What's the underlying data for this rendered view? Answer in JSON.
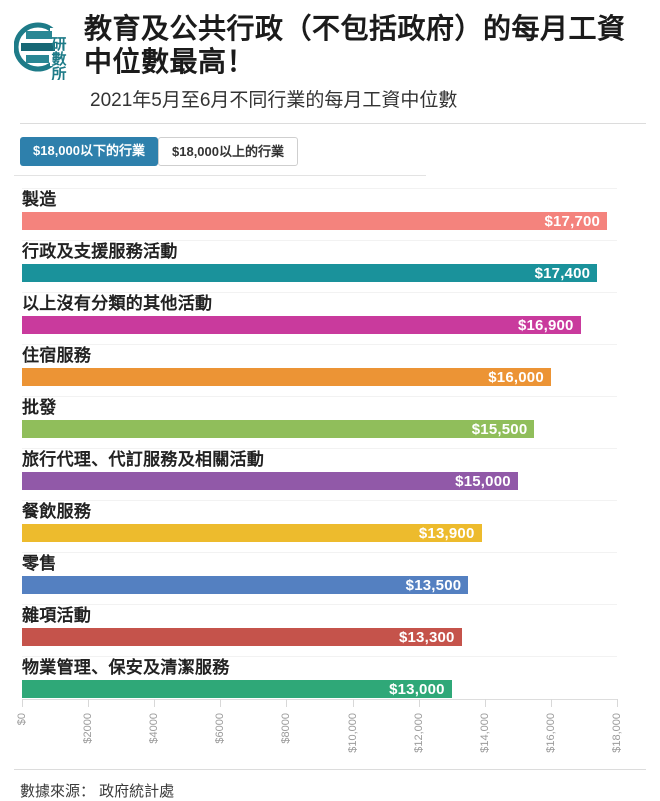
{
  "header": {
    "logo_chars": "研數所",
    "title": "教育及公共行政（不包括政府）的每月工資中位數最高！",
    "subtitle": "2021年5月至6月不同行業的每月工資中位數"
  },
  "tabs": [
    {
      "label": "$18,000以下的行業",
      "active": true
    },
    {
      "label": "$18,000以上的行業",
      "active": false
    }
  ],
  "colors": {
    "active_tab": "#2E80AC",
    "logo_teal": "#1E7B88",
    "axis_label": "#9b9b9b"
  },
  "chart_data": {
    "type": "bar",
    "orientation": "horizontal",
    "categories": [
      "製造",
      "行政及支援服務活動",
      "以上沒有分類的其他活動",
      "住宿服務",
      "批發",
      "旅行代理、代訂服務及相關活動",
      "餐飲服務",
      "零售",
      "雜項活動",
      "物業管理、保安及清潔服務"
    ],
    "values": [
      17700,
      17400,
      16900,
      16000,
      15500,
      15000,
      13900,
      13500,
      13300,
      13000
    ],
    "value_labels": [
      "$17,700",
      "$17,400",
      "$16,900",
      "$16,000",
      "$15,500",
      "$15,000",
      "$13,900",
      "$13,500",
      "$13,300",
      "$13,000"
    ],
    "bar_colors": [
      "#F4837D",
      "#1A929B",
      "#C93A9D",
      "#EC9435",
      "#90BE5B",
      "#9159A8",
      "#EDBB2D",
      "#5480C1",
      "#C5534B",
      "#2FA878"
    ],
    "x_tick_values": [
      0,
      2000,
      4000,
      6000,
      8000,
      10000,
      12000,
      14000,
      16000,
      18000
    ],
    "x_tick_labels": [
      "$0",
      "$2000",
      "$4000",
      "$6000",
      "$8000",
      "$10,000",
      "$12,000",
      "$14,000",
      "$16,000",
      "$18,000"
    ],
    "xlim": [
      0,
      18000
    ],
    "grid": false,
    "legend": "none"
  },
  "footer": {
    "source": "數據來源： 政府統計處"
  }
}
